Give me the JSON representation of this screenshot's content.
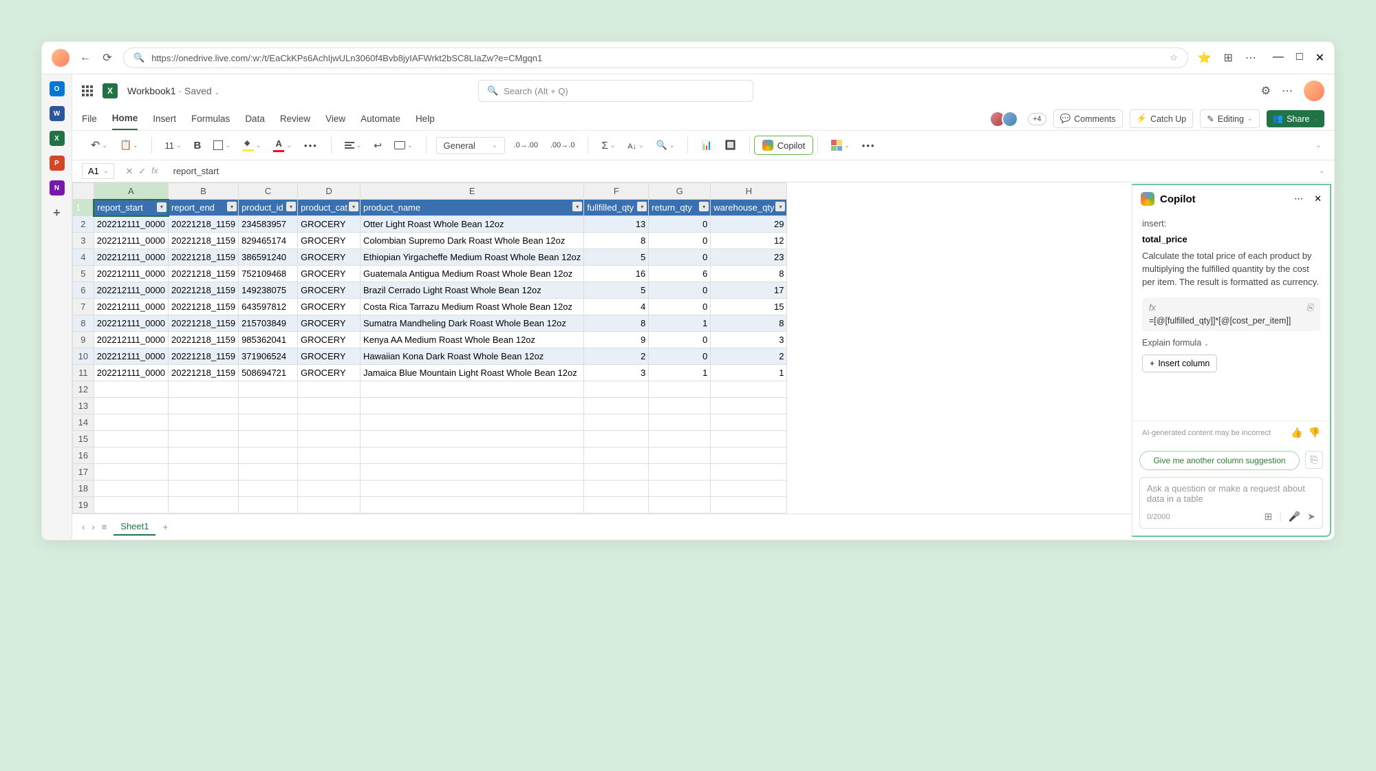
{
  "browser": {
    "url": "https://onedrive.live.com/:w:/t/EaCkKPs6AchIjwULn3060f4Bvb8jyIAFWrkt2bSC8LIaZw?e=CMgqn1"
  },
  "title": {
    "doc": "Workbook1",
    "saved": " · Saved",
    "search_placeholder": "Search (Alt + Q)"
  },
  "tabs": {
    "file": "File",
    "home": "Home",
    "insert": "Insert",
    "formulas": "Formulas",
    "data": "Data",
    "review": "Review",
    "view": "View",
    "automate": "Automate",
    "help": "Help",
    "plus": "+4",
    "comments": "Comments",
    "catchup": "Catch Up",
    "editing": "Editing",
    "share": "Share"
  },
  "ribbon": {
    "font_size": "11",
    "format": "General",
    "copilot": "Copilot"
  },
  "formula_bar": {
    "name_box": "A1",
    "value": "report_start"
  },
  "columns": [
    "A",
    "B",
    "C",
    "D",
    "E",
    "F",
    "G",
    "H"
  ],
  "headers": [
    "report_start",
    "report_end",
    "product_id",
    "product_cat",
    "product_name",
    "fullfilled_qty",
    "return_qty",
    "warehouse_qty"
  ],
  "rows": [
    [
      "202212111_0000",
      "20221218_1159",
      "234583957",
      "GROCERY",
      "Otter Light Roast Whole Bean 12oz",
      "13",
      "0",
      "29"
    ],
    [
      "202212111_0000",
      "20221218_1159",
      "829465174",
      "GROCERY",
      "Colombian Supremo Dark Roast Whole Bean 12oz",
      "8",
      "0",
      "12"
    ],
    [
      "202212111_0000",
      "20221218_1159",
      "386591240",
      "GROCERY",
      "Ethiopian Yirgacheffe Medium Roast Whole Bean 12oz",
      "5",
      "0",
      "23"
    ],
    [
      "202212111_0000",
      "20221218_1159",
      "752109468",
      "GROCERY",
      "Guatemala Antigua Medium Roast Whole Bean 12oz",
      "16",
      "6",
      "8"
    ],
    [
      "202212111_0000",
      "20221218_1159",
      "149238075",
      "GROCERY",
      "Brazil Cerrado Light Roast Whole Bean 12oz",
      "5",
      "0",
      "17"
    ],
    [
      "202212111_0000",
      "20221218_1159",
      "643597812",
      "GROCERY",
      "Costa Rica Tarrazu Medium Roast Whole Bean 12oz",
      "4",
      "0",
      "15"
    ],
    [
      "202212111_0000",
      "20221218_1159",
      "215703849",
      "GROCERY",
      "Sumatra Mandheling Dark Roast Whole Bean 12oz",
      "8",
      "1",
      "8"
    ],
    [
      "202212111_0000",
      "20221218_1159",
      "985362041",
      "GROCERY",
      "Kenya AA Medium Roast Whole Bean 12oz",
      "9",
      "0",
      "3"
    ],
    [
      "202212111_0000",
      "20221218_1159",
      "371906524",
      "GROCERY",
      "Hawaiian Kona Dark Roast Whole Bean 12oz",
      "2",
      "0",
      "2"
    ],
    [
      "202212111_0000",
      "20221218_1159",
      "508694721",
      "GROCERY",
      "Jamaica Blue Mountain Light Roast Whole Bean 12oz",
      "3",
      "1",
      "1"
    ]
  ],
  "sheet": {
    "name": "Sheet1"
  },
  "copilot": {
    "title": "Copilot",
    "insert_label": "insert:",
    "column_name": "total_price",
    "description": "Calculate the total price of each product by multiplying the fulfilled quantity by the cost per item. The result is formatted as currency.",
    "formula": "=[@[fulfilled_qty]]*[@[cost_per_item]]",
    "explain": "Explain formula",
    "insert_btn": "Insert column",
    "disclaimer": "AI-generated content may be incorrect",
    "suggestion": "Give me another column suggestion",
    "placeholder": "Ask a question or make a request about data in a table",
    "counter": "0/2000"
  }
}
